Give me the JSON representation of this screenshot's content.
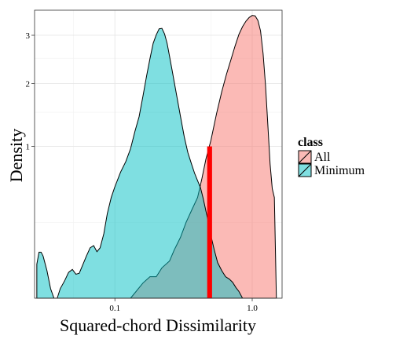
{
  "chart_data": {
    "type": "area",
    "title": "",
    "xlabel": "Squared-chord Dissimilarity",
    "ylabel": "Density",
    "x_scale": "log10",
    "y_scale": "sqrt",
    "xlim": [
      0.026,
      1.65
    ],
    "ylim": [
      0,
      3.6
    ],
    "x_ticks": [
      0.1,
      1.0
    ],
    "x_tick_labels": [
      "0.1",
      "1.0"
    ],
    "y_ticks": [
      1,
      2,
      3
    ],
    "y_tick_labels": [
      "1",
      "2",
      "3"
    ],
    "grid": true,
    "legend": {
      "title": "class",
      "position": "right",
      "entries": [
        "All",
        "Minimum"
      ]
    },
    "series": [
      {
        "name": "All",
        "color": "#F8766D",
        "fill_alpha": 0.5,
        "x": [
          0.13,
          0.16,
          0.18,
          0.2,
          0.22,
          0.25,
          0.27,
          0.3,
          0.33,
          0.36,
          0.4,
          0.43,
          0.46,
          0.5,
          0.55,
          0.6,
          0.65,
          0.7,
          0.75,
          0.8,
          0.85,
          0.9,
          0.95,
          1.0,
          1.05,
          1.1,
          1.15,
          1.2,
          1.25,
          1.3,
          1.35,
          1.4,
          1.45,
          1.5
        ],
        "y": [
          0,
          0.01,
          0.02,
          0.02,
          0.04,
          0.06,
          0.1,
          0.16,
          0.25,
          0.33,
          0.44,
          0.62,
          0.84,
          1.08,
          1.48,
          1.85,
          2.18,
          2.47,
          2.76,
          3.02,
          3.2,
          3.33,
          3.42,
          3.47,
          3.46,
          3.35,
          3.1,
          2.6,
          1.97,
          1.3,
          0.78,
          0.52,
          0.44,
          0
        ]
      },
      {
        "name": "Minimum",
        "color": "#00BFC4",
        "fill_alpha": 0.5,
        "x": [
          0.027,
          0.028,
          0.029,
          0.03,
          0.032,
          0.034,
          0.036,
          0.038,
          0.04,
          0.043,
          0.046,
          0.049,
          0.052,
          0.055,
          0.058,
          0.062,
          0.066,
          0.07,
          0.074,
          0.078,
          0.083,
          0.088,
          0.094,
          0.1,
          0.11,
          0.12,
          0.13,
          0.14,
          0.15,
          0.16,
          0.17,
          0.18,
          0.19,
          0.2,
          0.21,
          0.22,
          0.23,
          0.24,
          0.25,
          0.26,
          0.27,
          0.28,
          0.3,
          0.32,
          0.34,
          0.36,
          0.38,
          0.4,
          0.42,
          0.44,
          0.46,
          0.48,
          0.5,
          0.53,
          0.56,
          0.6,
          0.64,
          0.68,
          0.72,
          0.76,
          0.8,
          0.85,
          0.9
        ],
        "y": [
          0.05,
          0.092,
          0.092,
          0.077,
          0.033,
          0.004,
          0,
          0,
          0.004,
          0.013,
          0.029,
          0.036,
          0.025,
          0.027,
          0.046,
          0.077,
          0.11,
          0.12,
          0.094,
          0.11,
          0.18,
          0.31,
          0.44,
          0.54,
          0.69,
          0.81,
          0.97,
          1.21,
          1.43,
          1.77,
          2.14,
          2.49,
          2.82,
          3.01,
          3.15,
          3.16,
          3.03,
          2.82,
          2.54,
          2.28,
          2.04,
          1.82,
          1.44,
          1.13,
          0.92,
          0.79,
          0.68,
          0.6,
          0.53,
          0.43,
          0.33,
          0.25,
          0.17,
          0.1,
          0.055,
          0.033,
          0.02,
          0.016,
          0.011,
          0.005,
          0.002,
          0,
          0
        ]
      }
    ],
    "annotation_bar": {
      "color": "#FF0000",
      "x_start": 0.47,
      "x_end": 0.51,
      "y": 1.0
    }
  }
}
